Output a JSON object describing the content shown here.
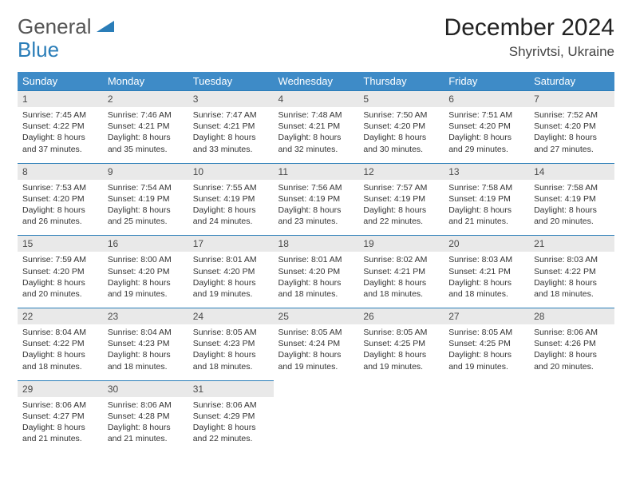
{
  "logo": {
    "text1": "General",
    "text2": "Blue",
    "color_gray": "#555555",
    "color_blue": "#2a7db8"
  },
  "header": {
    "title": "December 2024",
    "subtitle": "Shyrivtsi, Ukraine"
  },
  "colors": {
    "header_row_bg": "#3e8bc7",
    "header_row_fg": "#ffffff",
    "daynum_bg": "#e9e9e9",
    "daynum_fg": "#4a4a4a",
    "rule": "#2a7db8",
    "background": "#ffffff"
  },
  "weekdays": [
    "Sunday",
    "Monday",
    "Tuesday",
    "Wednesday",
    "Thursday",
    "Friday",
    "Saturday"
  ],
  "weeks": [
    [
      {
        "n": "1",
        "sr": "Sunrise: 7:45 AM",
        "ss": "Sunset: 4:22 PM",
        "dl1": "Daylight: 8 hours",
        "dl2": "and 37 minutes."
      },
      {
        "n": "2",
        "sr": "Sunrise: 7:46 AM",
        "ss": "Sunset: 4:21 PM",
        "dl1": "Daylight: 8 hours",
        "dl2": "and 35 minutes."
      },
      {
        "n": "3",
        "sr": "Sunrise: 7:47 AM",
        "ss": "Sunset: 4:21 PM",
        "dl1": "Daylight: 8 hours",
        "dl2": "and 33 minutes."
      },
      {
        "n": "4",
        "sr": "Sunrise: 7:48 AM",
        "ss": "Sunset: 4:21 PM",
        "dl1": "Daylight: 8 hours",
        "dl2": "and 32 minutes."
      },
      {
        "n": "5",
        "sr": "Sunrise: 7:50 AM",
        "ss": "Sunset: 4:20 PM",
        "dl1": "Daylight: 8 hours",
        "dl2": "and 30 minutes."
      },
      {
        "n": "6",
        "sr": "Sunrise: 7:51 AM",
        "ss": "Sunset: 4:20 PM",
        "dl1": "Daylight: 8 hours",
        "dl2": "and 29 minutes."
      },
      {
        "n": "7",
        "sr": "Sunrise: 7:52 AM",
        "ss": "Sunset: 4:20 PM",
        "dl1": "Daylight: 8 hours",
        "dl2": "and 27 minutes."
      }
    ],
    [
      {
        "n": "8",
        "sr": "Sunrise: 7:53 AM",
        "ss": "Sunset: 4:20 PM",
        "dl1": "Daylight: 8 hours",
        "dl2": "and 26 minutes."
      },
      {
        "n": "9",
        "sr": "Sunrise: 7:54 AM",
        "ss": "Sunset: 4:19 PM",
        "dl1": "Daylight: 8 hours",
        "dl2": "and 25 minutes."
      },
      {
        "n": "10",
        "sr": "Sunrise: 7:55 AM",
        "ss": "Sunset: 4:19 PM",
        "dl1": "Daylight: 8 hours",
        "dl2": "and 24 minutes."
      },
      {
        "n": "11",
        "sr": "Sunrise: 7:56 AM",
        "ss": "Sunset: 4:19 PM",
        "dl1": "Daylight: 8 hours",
        "dl2": "and 23 minutes."
      },
      {
        "n": "12",
        "sr": "Sunrise: 7:57 AM",
        "ss": "Sunset: 4:19 PM",
        "dl1": "Daylight: 8 hours",
        "dl2": "and 22 minutes."
      },
      {
        "n": "13",
        "sr": "Sunrise: 7:58 AM",
        "ss": "Sunset: 4:19 PM",
        "dl1": "Daylight: 8 hours",
        "dl2": "and 21 minutes."
      },
      {
        "n": "14",
        "sr": "Sunrise: 7:58 AM",
        "ss": "Sunset: 4:19 PM",
        "dl1": "Daylight: 8 hours",
        "dl2": "and 20 minutes."
      }
    ],
    [
      {
        "n": "15",
        "sr": "Sunrise: 7:59 AM",
        "ss": "Sunset: 4:20 PM",
        "dl1": "Daylight: 8 hours",
        "dl2": "and 20 minutes."
      },
      {
        "n": "16",
        "sr": "Sunrise: 8:00 AM",
        "ss": "Sunset: 4:20 PM",
        "dl1": "Daylight: 8 hours",
        "dl2": "and 19 minutes."
      },
      {
        "n": "17",
        "sr": "Sunrise: 8:01 AM",
        "ss": "Sunset: 4:20 PM",
        "dl1": "Daylight: 8 hours",
        "dl2": "and 19 minutes."
      },
      {
        "n": "18",
        "sr": "Sunrise: 8:01 AM",
        "ss": "Sunset: 4:20 PM",
        "dl1": "Daylight: 8 hours",
        "dl2": "and 18 minutes."
      },
      {
        "n": "19",
        "sr": "Sunrise: 8:02 AM",
        "ss": "Sunset: 4:21 PM",
        "dl1": "Daylight: 8 hours",
        "dl2": "and 18 minutes."
      },
      {
        "n": "20",
        "sr": "Sunrise: 8:03 AM",
        "ss": "Sunset: 4:21 PM",
        "dl1": "Daylight: 8 hours",
        "dl2": "and 18 minutes."
      },
      {
        "n": "21",
        "sr": "Sunrise: 8:03 AM",
        "ss": "Sunset: 4:22 PM",
        "dl1": "Daylight: 8 hours",
        "dl2": "and 18 minutes."
      }
    ],
    [
      {
        "n": "22",
        "sr": "Sunrise: 8:04 AM",
        "ss": "Sunset: 4:22 PM",
        "dl1": "Daylight: 8 hours",
        "dl2": "and 18 minutes."
      },
      {
        "n": "23",
        "sr": "Sunrise: 8:04 AM",
        "ss": "Sunset: 4:23 PM",
        "dl1": "Daylight: 8 hours",
        "dl2": "and 18 minutes."
      },
      {
        "n": "24",
        "sr": "Sunrise: 8:05 AM",
        "ss": "Sunset: 4:23 PM",
        "dl1": "Daylight: 8 hours",
        "dl2": "and 18 minutes."
      },
      {
        "n": "25",
        "sr": "Sunrise: 8:05 AM",
        "ss": "Sunset: 4:24 PM",
        "dl1": "Daylight: 8 hours",
        "dl2": "and 19 minutes."
      },
      {
        "n": "26",
        "sr": "Sunrise: 8:05 AM",
        "ss": "Sunset: 4:25 PM",
        "dl1": "Daylight: 8 hours",
        "dl2": "and 19 minutes."
      },
      {
        "n": "27",
        "sr": "Sunrise: 8:05 AM",
        "ss": "Sunset: 4:25 PM",
        "dl1": "Daylight: 8 hours",
        "dl2": "and 19 minutes."
      },
      {
        "n": "28",
        "sr": "Sunrise: 8:06 AM",
        "ss": "Sunset: 4:26 PM",
        "dl1": "Daylight: 8 hours",
        "dl2": "and 20 minutes."
      }
    ],
    [
      {
        "n": "29",
        "sr": "Sunrise: 8:06 AM",
        "ss": "Sunset: 4:27 PM",
        "dl1": "Daylight: 8 hours",
        "dl2": "and 21 minutes."
      },
      {
        "n": "30",
        "sr": "Sunrise: 8:06 AM",
        "ss": "Sunset: 4:28 PM",
        "dl1": "Daylight: 8 hours",
        "dl2": "and 21 minutes."
      },
      {
        "n": "31",
        "sr": "Sunrise: 8:06 AM",
        "ss": "Sunset: 4:29 PM",
        "dl1": "Daylight: 8 hours",
        "dl2": "and 22 minutes."
      },
      null,
      null,
      null,
      null
    ]
  ]
}
